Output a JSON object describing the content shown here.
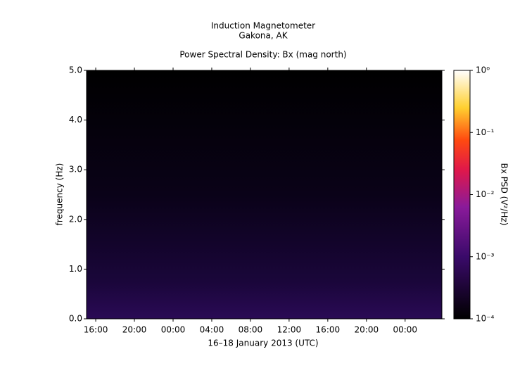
{
  "chart_data": {
    "type": "spectrogram",
    "title": "Induction Magnetometer",
    "subtitle": "Gakona, AK",
    "plot_title": "Power Spectral Density: Bx (mag north)",
    "xlabel": "16–18 January 2013 (UTC)",
    "ylabel": "frequency (Hz)",
    "xlim": [
      15.05,
      51.8
    ],
    "xticks": [
      {
        "value": 16,
        "label": "16:00"
      },
      {
        "value": 20,
        "label": "20:00"
      },
      {
        "value": 24,
        "label": "00:00"
      },
      {
        "value": 28,
        "label": "04:00"
      },
      {
        "value": 32,
        "label": "08:00"
      },
      {
        "value": 36,
        "label": "12:00"
      },
      {
        "value": 40,
        "label": "16:00"
      },
      {
        "value": 44,
        "label": "20:00"
      },
      {
        "value": 48,
        "label": "00:00"
      }
    ],
    "ylim": [
      0,
      5
    ],
    "yticks": [
      {
        "value": 0,
        "label": "0.0"
      },
      {
        "value": 1,
        "label": "1.0"
      },
      {
        "value": 2,
        "label": "2.0"
      },
      {
        "value": 3,
        "label": "3.0"
      },
      {
        "value": 4,
        "label": "4.0"
      },
      {
        "value": 5,
        "label": "5.0"
      }
    ],
    "colorbar": {
      "label": "Bx PSD (V²/Hz)",
      "log_scale": true,
      "lim": [
        0.0001,
        1
      ],
      "ticks": [
        {
          "value": 0.0001,
          "label": "10⁻⁴"
        },
        {
          "value": 0.001,
          "label": "10⁻³"
        },
        {
          "value": 0.01,
          "label": "10⁻²"
        },
        {
          "value": 0.1,
          "label": "10⁻¹"
        },
        {
          "value": 1,
          "label": "10⁰"
        }
      ]
    }
  }
}
